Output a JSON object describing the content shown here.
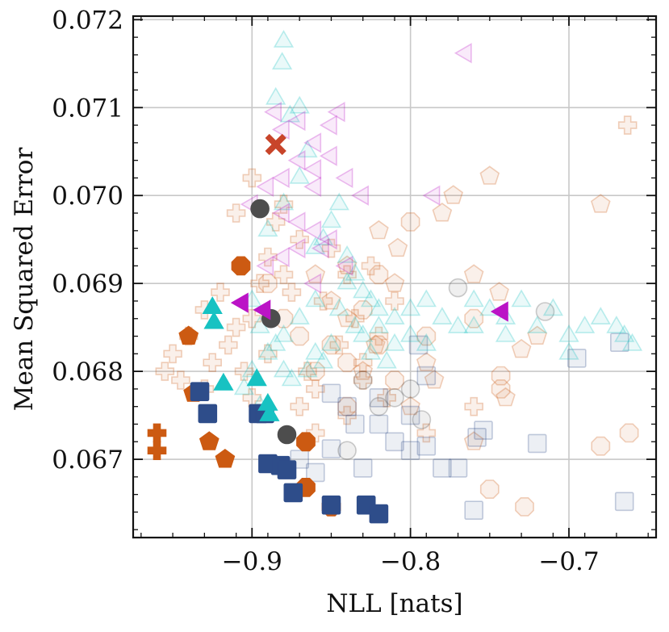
{
  "chart_data": {
    "type": "scatter",
    "title": "",
    "xlabel": "NLL [nats]",
    "ylabel": "Mean Squared Error",
    "xlim": [
      -0.975,
      -0.645
    ],
    "ylim": [
      0.06611,
      0.07204
    ],
    "xticks": [
      -0.9,
      -0.8,
      -0.7
    ],
    "xtick_labels": [
      "−0.9",
      "−0.8",
      "−0.7"
    ],
    "yticks": [
      0.067,
      0.068,
      0.069,
      0.07,
      0.071,
      0.072
    ],
    "ytick_labels": [
      "0.067",
      "0.068",
      "0.069",
      "0.070",
      "0.071",
      "0.072"
    ],
    "grid": true,
    "legend": "none",
    "series": [
      {
        "name": "orange-plus",
        "marker": "plus",
        "color": "#cc5a12",
        "highlight": [
          [
            -0.96,
            0.0673
          ],
          [
            -0.96,
            0.0671
          ]
        ],
        "faint": [
          [
            -0.95,
            0.0682
          ],
          [
            -0.94,
            0.0684
          ],
          [
            -0.93,
            0.0687
          ],
          [
            -0.92,
            0.0689
          ],
          [
            -0.915,
            0.0683
          ],
          [
            -0.91,
            0.0685
          ],
          [
            -0.905,
            0.068
          ],
          [
            -0.9,
            0.0686
          ],
          [
            -0.895,
            0.069
          ],
          [
            -0.89,
            0.0693
          ],
          [
            -0.885,
            0.0697
          ],
          [
            -0.88,
            0.0691
          ],
          [
            -0.875,
            0.0689
          ],
          [
            -0.87,
            0.0695
          ],
          [
            -0.865,
            0.068
          ],
          [
            -0.86,
            0.0678
          ],
          [
            -0.855,
            0.0688
          ],
          [
            -0.85,
            0.0694
          ],
          [
            -0.845,
            0.0683
          ],
          [
            -0.84,
            0.0691
          ],
          [
            -0.835,
            0.0686
          ],
          [
            -0.83,
            0.0679
          ],
          [
            -0.825,
            0.0692
          ],
          [
            -0.82,
            0.0684
          ],
          [
            -0.815,
            0.0677
          ],
          [
            -0.81,
            0.0688
          ],
          [
            -0.93,
            0.0678
          ],
          [
            -0.925,
            0.0681
          ],
          [
            -0.945,
            0.0679
          ],
          [
            -0.955,
            0.068
          ],
          [
            -0.9,
            0.0677
          ],
          [
            -0.89,
            0.0682
          ],
          [
            -0.87,
            0.0676
          ],
          [
            -0.86,
            0.0673
          ],
          [
            -0.84,
            0.0675
          ],
          [
            -0.83,
            0.0681
          ],
          [
            -0.79,
            0.0673
          ],
          [
            -0.76,
            0.0676
          ],
          [
            -0.663,
            0.0708
          ],
          [
            -0.91,
            0.0698
          ],
          [
            -0.9,
            0.0702
          ],
          [
            -0.88,
            0.0699
          ]
        ]
      },
      {
        "name": "orange-pentagon",
        "marker": "pentagon",
        "color": "#cc5a12",
        "highlight": [
          [
            -0.94,
            0.0684
          ],
          [
            -0.937,
            0.06775
          ],
          [
            -0.927,
            0.0672
          ],
          [
            -0.917,
            0.067
          ]
        ],
        "faint": [
          [
            -0.75,
            0.07022
          ],
          [
            -0.773,
            0.07
          ],
          [
            -0.78,
            0.0698
          ],
          [
            -0.68,
            0.0699
          ],
          [
            -0.82,
            0.0696
          ],
          [
            -0.808,
            0.0694
          ],
          [
            -0.84,
            0.0692
          ],
          [
            -0.81,
            0.069
          ],
          [
            -0.76,
            0.0691
          ],
          [
            -0.744,
            0.0689
          ],
          [
            -0.72,
            0.0684
          ],
          [
            -0.73,
            0.06825
          ],
          [
            -0.785,
            0.0679
          ],
          [
            -0.74,
            0.0677
          ],
          [
            -0.76,
            0.0672
          ],
          [
            -0.84,
            0.0686
          ],
          [
            -0.822,
            0.0683
          ],
          [
            -0.83,
            0.068
          ],
          [
            -0.8,
            0.0676
          ],
          [
            -0.79,
            0.0681
          ],
          [
            -0.85,
            0.0688
          ],
          [
            -0.86,
            0.0691
          ]
        ]
      },
      {
        "name": "orange-octagon",
        "marker": "octagon",
        "color": "#cc5a12",
        "highlight": [
          [
            -0.907,
            0.0692
          ],
          [
            -0.866,
            0.0672
          ],
          [
            -0.866,
            0.06668
          ],
          [
            -0.85,
            0.06646
          ]
        ],
        "faint": [
          [
            -0.75,
            0.06666
          ],
          [
            -0.728,
            0.06646
          ],
          [
            -0.68,
            0.06715
          ],
          [
            -0.662,
            0.0673
          ],
          [
            -0.743,
            0.0678
          ],
          [
            -0.743,
            0.06795
          ],
          [
            -0.76,
            0.0686
          ],
          [
            -0.79,
            0.0684
          ],
          [
            -0.82,
            0.0683
          ],
          [
            -0.81,
            0.0679
          ],
          [
            -0.84,
            0.0681
          ],
          [
            -0.86,
            0.068
          ],
          [
            -0.87,
            0.0684
          ],
          [
            -0.88,
            0.0686
          ],
          [
            -0.89,
            0.069
          ],
          [
            -0.84,
            0.0676
          ],
          [
            -0.85,
            0.0683
          ],
          [
            -0.83,
            0.0687
          ],
          [
            -0.8,
            0.0697
          ],
          [
            -0.82,
            0.0691
          ]
        ]
      },
      {
        "name": "navy-square",
        "marker": "square",
        "color": "#2e4d8a",
        "highlight": [
          [
            -0.933,
            0.06777
          ],
          [
            -0.928,
            0.06752
          ],
          [
            -0.896,
            0.06752
          ],
          [
            -0.892,
            0.06752
          ],
          [
            -0.89,
            0.06695
          ],
          [
            -0.882,
            0.06693
          ],
          [
            -0.878,
            0.06688
          ],
          [
            -0.874,
            0.06662
          ],
          [
            -0.85,
            0.06648
          ],
          [
            -0.828,
            0.06648
          ],
          [
            -0.82,
            0.06638
          ]
        ],
        "faint": [
          [
            -0.79,
            0.06795
          ],
          [
            -0.795,
            0.0683
          ],
          [
            -0.695,
            0.06815
          ],
          [
            -0.668,
            0.06833
          ],
          [
            -0.72,
            0.06718
          ],
          [
            -0.754,
            0.06733
          ],
          [
            -0.758,
            0.06725
          ],
          [
            -0.77,
            0.0669
          ],
          [
            -0.78,
            0.0669
          ],
          [
            -0.8,
            0.0671
          ],
          [
            -0.81,
            0.0672
          ],
          [
            -0.82,
            0.0674
          ],
          [
            -0.84,
            0.0676
          ],
          [
            -0.85,
            0.06775
          ],
          [
            -0.86,
            0.06685
          ],
          [
            -0.85,
            0.06712
          ],
          [
            -0.83,
            0.0669
          ],
          [
            -0.87,
            0.067
          ],
          [
            -0.76,
            0.06642
          ],
          [
            -0.665,
            0.06652
          ],
          [
            -0.79,
            0.06715
          ],
          [
            -0.8,
            0.0675
          ],
          [
            -0.82,
            0.0677
          ],
          [
            -0.835,
            0.0674
          ]
        ]
      },
      {
        "name": "gray-circle",
        "marker": "circle",
        "color": "#4d4d4d",
        "highlight": [
          [
            -0.895,
            0.06985
          ],
          [
            -0.888,
            0.0686
          ],
          [
            -0.878,
            0.06728
          ]
        ],
        "faint": [
          [
            -0.77,
            0.06895
          ],
          [
            -0.715,
            0.06868
          ],
          [
            -0.793,
            0.06745
          ],
          [
            -0.8,
            0.0678
          ],
          [
            -0.81,
            0.0677
          ],
          [
            -0.82,
            0.0676
          ],
          [
            -0.83,
            0.0679
          ],
          [
            -0.84,
            0.0671
          ]
        ]
      },
      {
        "name": "teal-triangle",
        "marker": "triangle-up",
        "color": "#17c2c2",
        "highlight": [
          [
            -0.925,
            0.06872
          ],
          [
            -0.924,
            0.06855
          ],
          [
            -0.918,
            0.06785
          ],
          [
            -0.897,
            0.0679
          ],
          [
            -0.89,
            0.06762
          ],
          [
            -0.889,
            0.0675
          ]
        ],
        "faint": [
          [
            -0.88,
            0.07175
          ],
          [
            -0.881,
            0.0715
          ],
          [
            -0.885,
            0.0711
          ],
          [
            -0.876,
            0.0709
          ],
          [
            -0.87,
            0.071
          ],
          [
            -0.865,
            0.0705
          ],
          [
            -0.87,
            0.0702
          ],
          [
            -0.88,
            0.0699
          ],
          [
            -0.89,
            0.0696
          ],
          [
            -0.845,
            0.0699
          ],
          [
            -0.85,
            0.0697
          ],
          [
            -0.855,
            0.0695
          ],
          [
            -0.86,
            0.0694
          ],
          [
            -0.84,
            0.0693
          ],
          [
            -0.835,
            0.0691
          ],
          [
            -0.83,
            0.0689
          ],
          [
            -0.825,
            0.0688
          ],
          [
            -0.82,
            0.0687
          ],
          [
            -0.81,
            0.0686
          ],
          [
            -0.8,
            0.0687
          ],
          [
            -0.79,
            0.0688
          ],
          [
            -0.78,
            0.0686
          ],
          [
            -0.77,
            0.0685
          ],
          [
            -0.76,
            0.0688
          ],
          [
            -0.75,
            0.0687
          ],
          [
            -0.74,
            0.0686
          ],
          [
            -0.73,
            0.0688
          ],
          [
            -0.72,
            0.0685
          ],
          [
            -0.71,
            0.0687
          ],
          [
            -0.7,
            0.0684
          ],
          [
            -0.69,
            0.0685
          ],
          [
            -0.68,
            0.0686
          ],
          [
            -0.67,
            0.0685
          ],
          [
            -0.665,
            0.0684
          ],
          [
            -0.66,
            0.0683
          ],
          [
            -0.7,
            0.0682
          ],
          [
            -0.74,
            0.0684
          ],
          [
            -0.76,
            0.0685
          ],
          [
            -0.86,
            0.0688
          ],
          [
            -0.87,
            0.0686
          ],
          [
            -0.88,
            0.0684
          ],
          [
            -0.89,
            0.0682
          ],
          [
            -0.9,
            0.068
          ],
          [
            -0.905,
            0.0678
          ],
          [
            -0.895,
            0.0676
          ],
          [
            -0.88,
            0.068
          ],
          [
            -0.86,
            0.0682
          ],
          [
            -0.85,
            0.0683
          ],
          [
            -0.845,
            0.0687
          ],
          [
            -0.84,
            0.069
          ],
          [
            -0.83,
            0.0684
          ],
          [
            -0.82,
            0.0685
          ],
          [
            -0.81,
            0.0683
          ],
          [
            -0.8,
            0.0684
          ],
          [
            -0.79,
            0.0683
          ],
          [
            -0.855,
            0.0681
          ],
          [
            -0.865,
            0.068
          ],
          [
            -0.875,
            0.0679
          ],
          [
            -0.885,
            0.0683
          ],
          [
            -0.895,
            0.0685
          ],
          [
            -0.9,
            0.0688
          ],
          [
            -0.835,
            0.0685
          ],
          [
            -0.825,
            0.0682
          ],
          [
            -0.815,
            0.0681
          ]
        ]
      },
      {
        "name": "magenta-triangle",
        "marker": "triangle-left",
        "color": "#bb14c6",
        "highlight": [
          [
            -0.906,
            0.06878
          ],
          [
            -0.892,
            0.0687
          ],
          [
            -0.742,
            0.06868
          ]
        ],
        "faint": [
          [
            -0.765,
            0.07162
          ],
          [
            -0.785,
            0.07
          ],
          [
            -0.885,
            0.07095
          ],
          [
            -0.88,
            0.07075
          ],
          [
            -0.87,
            0.07085
          ],
          [
            -0.86,
            0.0706
          ],
          [
            -0.85,
            0.0708
          ],
          [
            -0.845,
            0.07095
          ],
          [
            -0.85,
            0.07045
          ],
          [
            -0.86,
            0.0703
          ],
          [
            -0.87,
            0.0704
          ],
          [
            -0.88,
            0.0702
          ],
          [
            -0.89,
            0.0701
          ],
          [
            -0.9,
            0.0699
          ],
          [
            -0.86,
            0.0701
          ],
          [
            -0.84,
            0.0702
          ],
          [
            -0.83,
            0.07
          ],
          [
            -0.88,
            0.0698
          ],
          [
            -0.87,
            0.0697
          ],
          [
            -0.86,
            0.0696
          ],
          [
            -0.85,
            0.0695
          ],
          [
            -0.87,
            0.0694
          ],
          [
            -0.88,
            0.0693
          ],
          [
            -0.89,
            0.0692
          ],
          [
            -0.86,
            0.069
          ],
          [
            -0.84,
            0.0692
          ],
          [
            -0.855,
            0.0694
          ]
        ]
      },
      {
        "name": "red-x",
        "marker": "x",
        "color": "#c8452a",
        "highlight": [
          [
            -0.885,
            0.07058
          ]
        ],
        "faint": []
      }
    ]
  }
}
